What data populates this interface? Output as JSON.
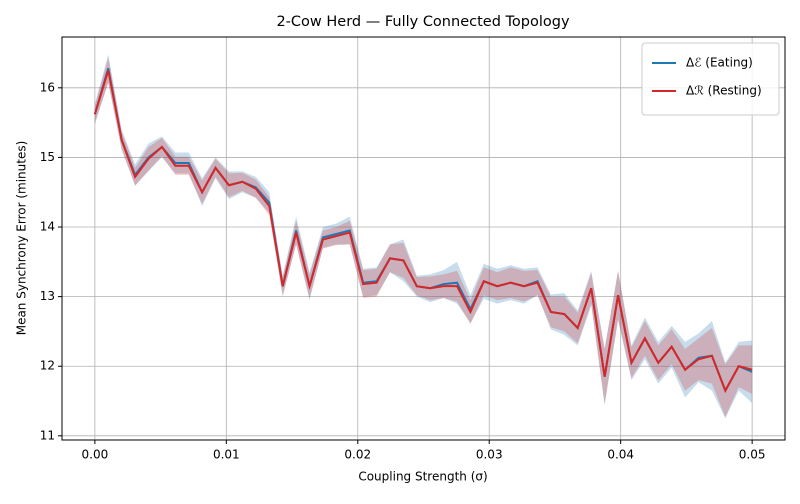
{
  "chart_data": {
    "type": "line",
    "title": "2-Cow Herd — Fully Connected Topology",
    "xlabel": "Coupling Strength (σ)",
    "ylabel": "Mean Synchrony Error (minutes)",
    "x": [
      0,
      0.00102,
      0.00204,
      0.00306,
      0.00408,
      0.0051,
      0.00612,
      0.00714,
      0.00816,
      0.00918,
      0.0102,
      0.01122,
      0.01224,
      0.01327,
      0.01429,
      0.01531,
      0.01633,
      0.01735,
      0.01837,
      0.01939,
      0.02041,
      0.02143,
      0.02245,
      0.02347,
      0.02449,
      0.02551,
      0.02653,
      0.02755,
      0.02857,
      0.02959,
      0.03061,
      0.03163,
      0.03265,
      0.03367,
      0.03469,
      0.03571,
      0.03673,
      0.03776,
      0.03878,
      0.0398,
      0.04082,
      0.04184,
      0.04286,
      0.04388,
      0.0449,
      0.04592,
      0.04694,
      0.04796,
      0.04898,
      0.05
    ],
    "series": [
      {
        "name": "Δℰ (Eating)",
        "color": "#1f77b4",
        "values": [
          15.62,
          16.28,
          15.25,
          14.75,
          15.0,
          15.15,
          14.92,
          14.92,
          14.5,
          14.85,
          14.6,
          14.65,
          14.57,
          14.35,
          13.15,
          13.95,
          13.15,
          13.85,
          13.9,
          13.95,
          13.2,
          13.22,
          13.55,
          13.52,
          13.15,
          13.12,
          13.18,
          13.2,
          12.82,
          13.22,
          13.15,
          13.2,
          13.15,
          13.22,
          12.78,
          12.75,
          12.55,
          13.12,
          11.85,
          13.02,
          12.05,
          12.4,
          12.05,
          12.28,
          11.95,
          12.12,
          12.15,
          11.65,
          12.0,
          11.92
        ],
        "error": [
          0.15,
          0.2,
          0.15,
          0.15,
          0.2,
          0.15,
          0.15,
          0.15,
          0.2,
          0.15,
          0.2,
          0.15,
          0.15,
          0.15,
          0.15,
          0.2,
          0.2,
          0.15,
          0.15,
          0.2,
          0.2,
          0.2,
          0.2,
          0.3,
          0.15,
          0.2,
          0.2,
          0.3,
          0.2,
          0.25,
          0.25,
          0.25,
          0.25,
          0.2,
          0.25,
          0.3,
          0.25,
          0.25,
          0.4,
          0.35,
          0.25,
          0.3,
          0.3,
          0.3,
          0.4,
          0.35,
          0.5,
          0.4,
          0.35,
          0.45
        ]
      },
      {
        "name": "Δℛ (Resting)",
        "color": "#d62728",
        "values": [
          15.62,
          16.25,
          15.25,
          14.72,
          14.98,
          15.15,
          14.88,
          14.88,
          14.5,
          14.85,
          14.6,
          14.65,
          14.55,
          14.3,
          13.15,
          13.92,
          13.15,
          13.82,
          13.87,
          13.92,
          13.18,
          13.2,
          13.55,
          13.52,
          13.15,
          13.12,
          13.15,
          13.15,
          12.78,
          13.22,
          13.15,
          13.2,
          13.15,
          13.2,
          12.78,
          12.75,
          12.55,
          13.12,
          11.85,
          13.02,
          12.05,
          12.4,
          12.05,
          12.28,
          11.95,
          12.1,
          12.15,
          11.65,
          12.0,
          11.95
        ],
        "error": [
          0.12,
          0.18,
          0.12,
          0.13,
          0.17,
          0.13,
          0.13,
          0.13,
          0.17,
          0.13,
          0.17,
          0.13,
          0.13,
          0.13,
          0.13,
          0.17,
          0.17,
          0.13,
          0.13,
          0.17,
          0.2,
          0.2,
          0.2,
          0.25,
          0.13,
          0.17,
          0.17,
          0.22,
          0.17,
          0.2,
          0.2,
          0.22,
          0.22,
          0.18,
          0.22,
          0.25,
          0.22,
          0.22,
          0.4,
          0.35,
          0.22,
          0.25,
          0.25,
          0.25,
          0.3,
          0.3,
          0.4,
          0.38,
          0.3,
          0.35
        ]
      }
    ],
    "xlim": [
      -0.0025,
      0.0525
    ],
    "ylim": [
      10.94,
      16.73
    ],
    "xticks": [
      {
        "value": 0,
        "label": "0.00"
      },
      0.01,
      0.02,
      0.03,
      0.04,
      0.05
    ],
    "yticks": [
      11,
      12,
      13,
      14,
      15,
      16
    ],
    "grid": true,
    "legend": "upper right"
  }
}
